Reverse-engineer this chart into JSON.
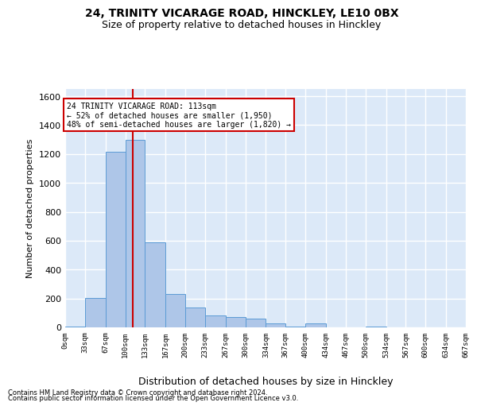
{
  "title1": "24, TRINITY VICARAGE ROAD, HINCKLEY, LE10 0BX",
  "title2": "Size of property relative to detached houses in Hinckley",
  "xlabel": "Distribution of detached houses by size in Hinckley",
  "ylabel": "Number of detached properties",
  "bin_edges": [
    0,
    33,
    67,
    100,
    133,
    167,
    200,
    233,
    267,
    300,
    334,
    367,
    400,
    434,
    467,
    500,
    534,
    567,
    600,
    634,
    667
  ],
  "bar_heights": [
    3,
    205,
    1215,
    1300,
    590,
    230,
    135,
    85,
    70,
    60,
    30,
    5,
    30,
    0,
    0,
    5,
    0,
    0,
    0,
    0
  ],
  "bar_color": "#aec6e8",
  "bar_edge_color": "#5b9bd5",
  "property_size": 113,
  "vline_color": "#cc0000",
  "annotation_line1": "24 TRINITY VICARAGE ROAD: 113sqm",
  "annotation_line2": "← 52% of detached houses are smaller (1,950)",
  "annotation_line3": "48% of semi-detached houses are larger (1,820) →",
  "annotation_box_color": "#ffffff",
  "annotation_box_edge": "#cc0000",
  "ylim": [
    0,
    1650
  ],
  "yticks": [
    0,
    200,
    400,
    600,
    800,
    1000,
    1200,
    1400,
    1600
  ],
  "background_color": "#dce9f8",
  "grid_color": "#ffffff",
  "footer1": "Contains HM Land Registry data © Crown copyright and database right 2024.",
  "footer2": "Contains public sector information licensed under the Open Government Licence v3.0."
}
